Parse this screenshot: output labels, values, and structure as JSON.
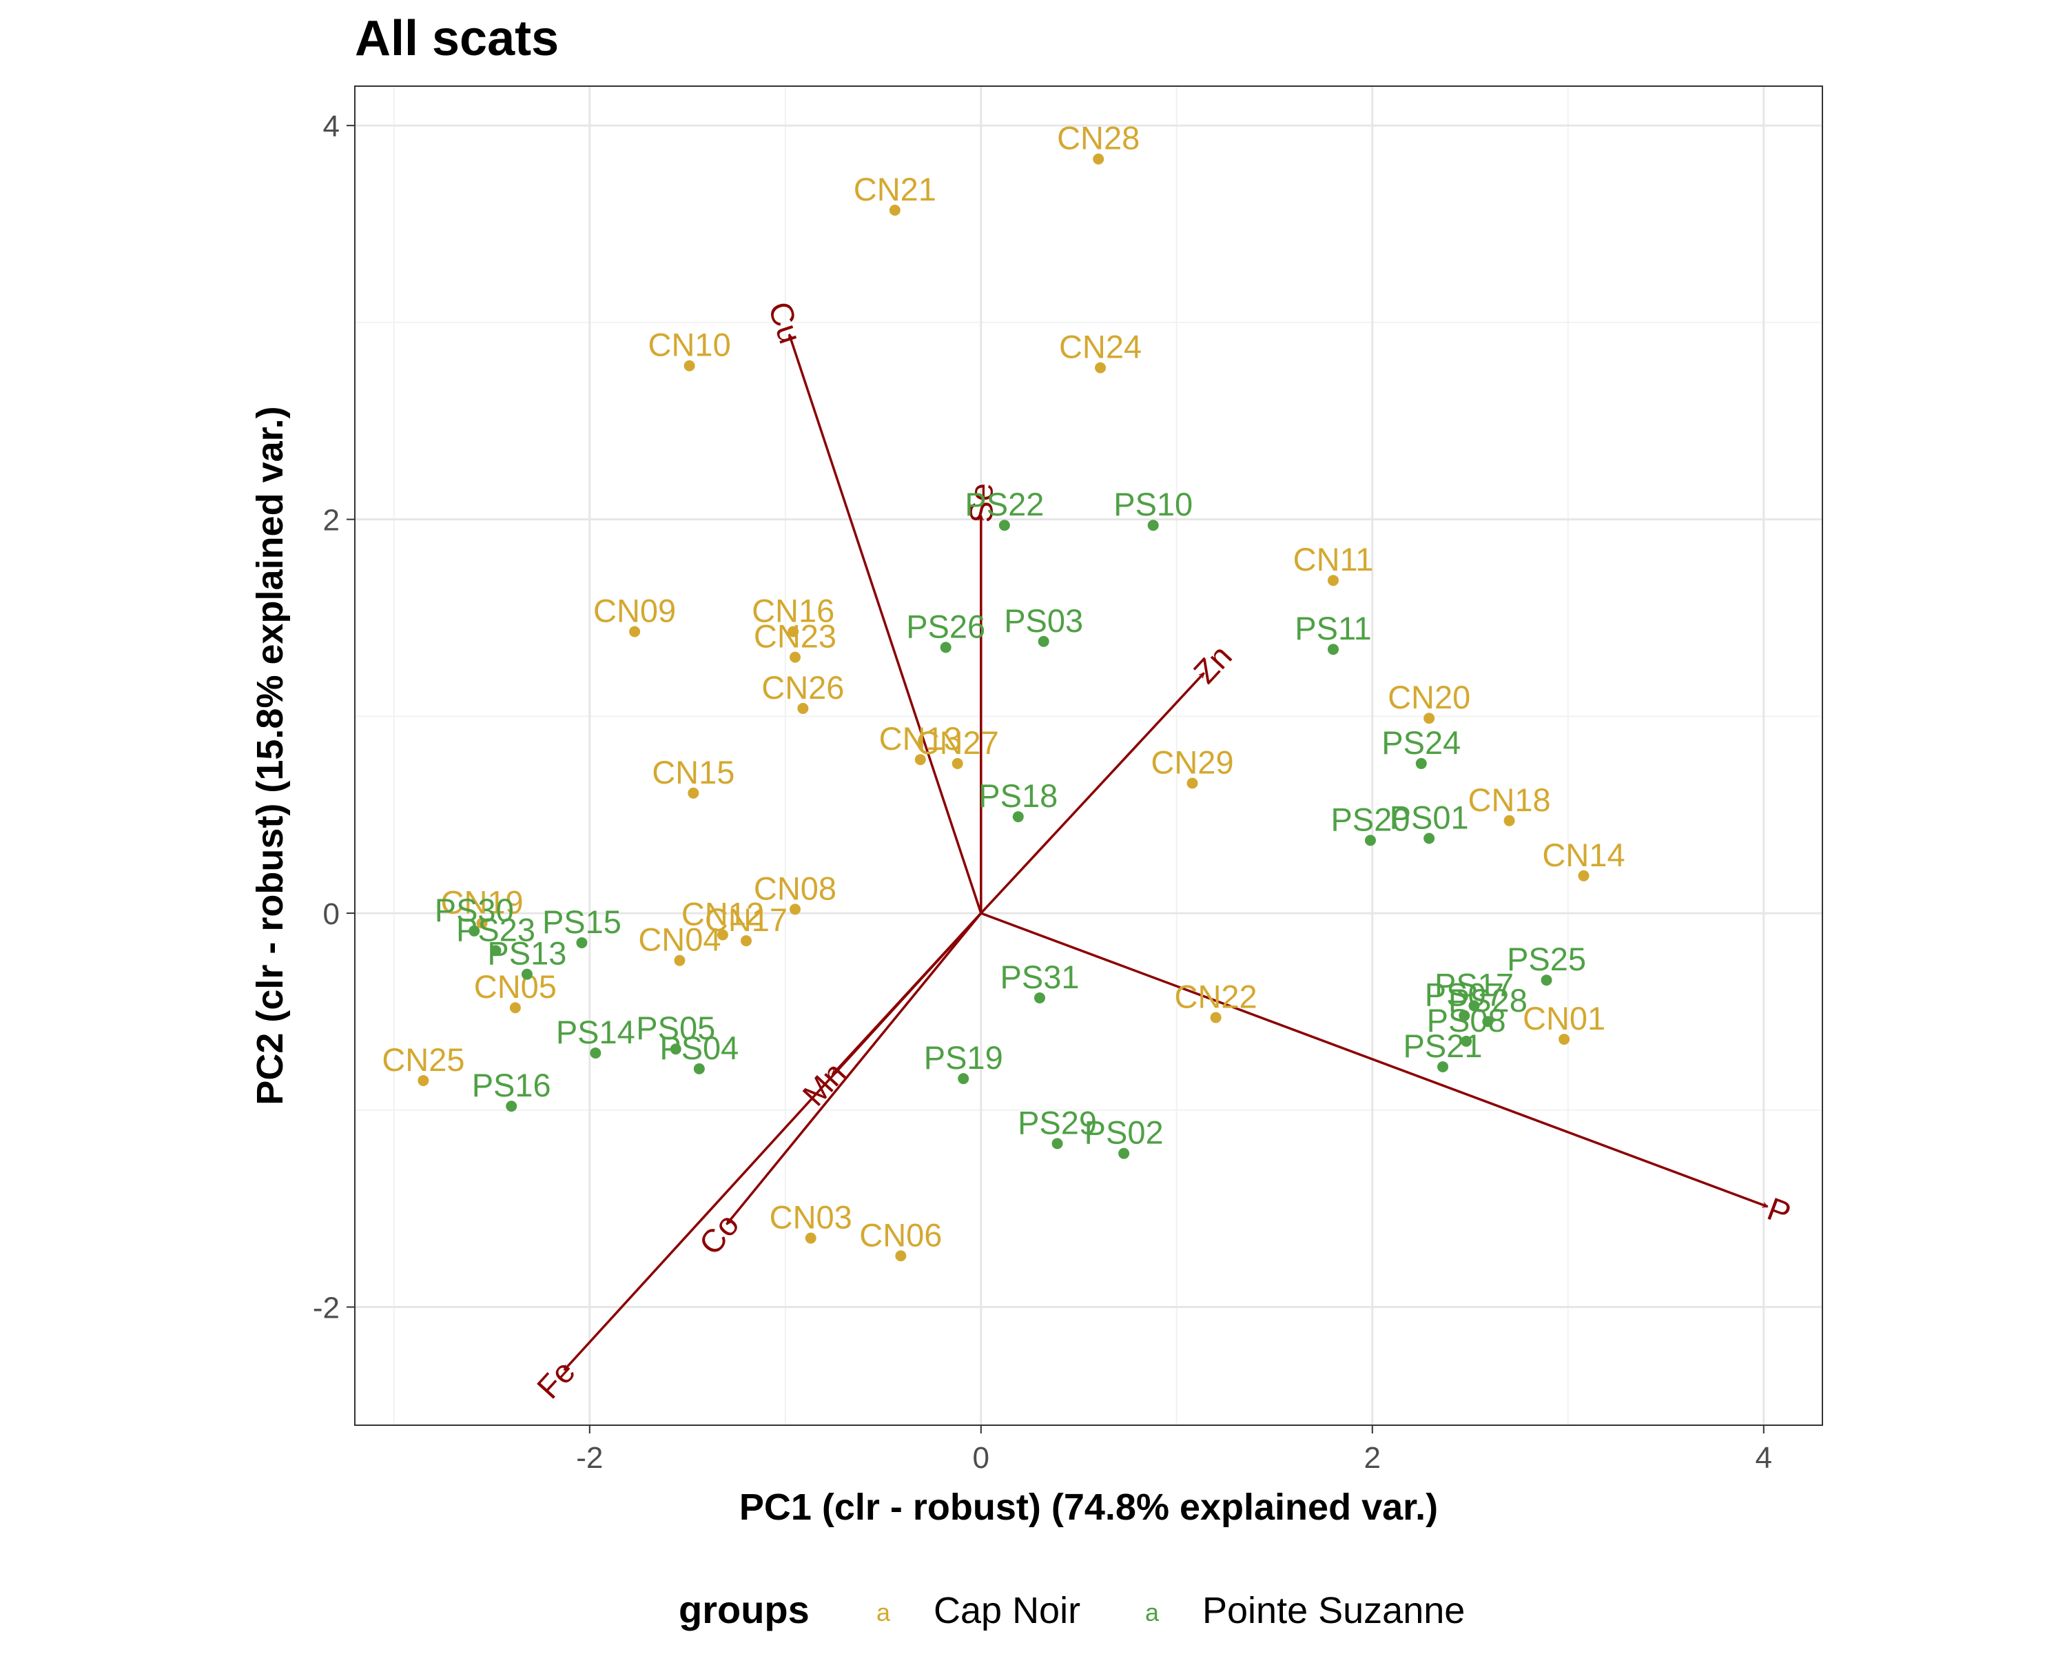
{
  "chart_data": {
    "type": "scatter",
    "title": "All scats",
    "xlabel": "PC1 (clr - robust) (74.8% explained var.)",
    "ylabel": "PC2 (clr - robust) (15.8% explained var.)",
    "xlim": [
      -3.2,
      4.3
    ],
    "ylim": [
      -2.6,
      4.2
    ],
    "xticks": [
      -2,
      0,
      2,
      4
    ],
    "yticks": [
      -2,
      0,
      2,
      4
    ],
    "grid": true,
    "legend": {
      "title": "groups",
      "position": "bottom",
      "key_glyph": "a"
    },
    "colors": {
      "Cap Noir": "#d4a830",
      "Pointe Suzanne": "#4fa045",
      "loadings": "#8b0000"
    },
    "series": [
      {
        "name": "Cap Noir",
        "color": "#d4a830",
        "points": [
          {
            "label": "CN28",
            "x": 0.6,
            "y": 3.83
          },
          {
            "label": "CN21",
            "x": -0.44,
            "y": 3.57
          },
          {
            "label": "CN10",
            "x": -1.49,
            "y": 2.78
          },
          {
            "label": "CN24",
            "x": 0.61,
            "y": 2.77
          },
          {
            "label": "CN11",
            "x": 1.8,
            "y": 1.69
          },
          {
            "label": "CN09",
            "x": -1.77,
            "y": 1.43
          },
          {
            "label": "CN16",
            "x": -0.96,
            "y": 1.43
          },
          {
            "label": "CN23",
            "x": -0.95,
            "y": 1.3
          },
          {
            "label": "CN26",
            "x": -0.91,
            "y": 1.04
          },
          {
            "label": "CN20",
            "x": 2.29,
            "y": 0.99
          },
          {
            "label": "CN13",
            "x": -0.31,
            "y": 0.78
          },
          {
            "label": "CN27",
            "x": -0.12,
            "y": 0.76
          },
          {
            "label": "CN29",
            "x": 1.08,
            "y": 0.66
          },
          {
            "label": "CN15",
            "x": -1.47,
            "y": 0.61
          },
          {
            "label": "CN18",
            "x": 2.7,
            "y": 0.47
          },
          {
            "label": "CN14",
            "x": 3.08,
            "y": 0.19
          },
          {
            "label": "CN08",
            "x": -0.95,
            "y": 0.02
          },
          {
            "label": "CN19",
            "x": -2.55,
            "y": -0.05
          },
          {
            "label": "CN12",
            "x": -1.32,
            "y": -0.11
          },
          {
            "label": "CN17",
            "x": -1.2,
            "y": -0.14
          },
          {
            "label": "CN04",
            "x": -1.54,
            "y": -0.24
          },
          {
            "label": "CN05",
            "x": -2.38,
            "y": -0.48
          },
          {
            "label": "CN22",
            "x": 1.2,
            "y": -0.53
          },
          {
            "label": "CN01",
            "x": 2.98,
            "y": -0.64
          },
          {
            "label": "CN25",
            "x": -2.85,
            "y": -0.85
          },
          {
            "label": "CN03",
            "x": -0.87,
            "y": -1.65
          },
          {
            "label": "CN06",
            "x": -0.41,
            "y": -1.74
          }
        ]
      },
      {
        "name": "Pointe Suzanne",
        "color": "#4fa045",
        "points": [
          {
            "label": "PS22",
            "x": 0.12,
            "y": 1.97
          },
          {
            "label": "PS10",
            "x": 0.88,
            "y": 1.97
          },
          {
            "label": "PS26",
            "x": -0.18,
            "y": 1.35
          },
          {
            "label": "PS03",
            "x": 0.32,
            "y": 1.38
          },
          {
            "label": "PS11",
            "x": 1.8,
            "y": 1.34
          },
          {
            "label": "PS24",
            "x": 2.25,
            "y": 0.76
          },
          {
            "label": "PS18",
            "x": 0.19,
            "y": 0.49
          },
          {
            "label": "PS20",
            "x": 1.99,
            "y": 0.37
          },
          {
            "label": "PS01",
            "x": 2.29,
            "y": 0.38
          },
          {
            "label": "PS30",
            "x": -2.59,
            "y": -0.09
          },
          {
            "label": "PS15",
            "x": -2.04,
            "y": -0.15
          },
          {
            "label": "PS23",
            "x": -2.48,
            "y": -0.19
          },
          {
            "label": "PS13",
            "x": -2.32,
            "y": -0.31
          },
          {
            "label": "PS25",
            "x": 2.89,
            "y": -0.34
          },
          {
            "label": "PS31",
            "x": 0.3,
            "y": -0.43
          },
          {
            "label": "PS17",
            "x": 2.52,
            "y": -0.47
          },
          {
            "label": "PS07",
            "x": 2.47,
            "y": -0.52
          },
          {
            "label": "PS28",
            "x": 2.59,
            "y": -0.55
          },
          {
            "label": "PS08",
            "x": 2.48,
            "y": -0.65
          },
          {
            "label": "PS21",
            "x": 2.36,
            "y": -0.78
          },
          {
            "label": "PS14",
            "x": -1.97,
            "y": -0.71
          },
          {
            "label": "PS05",
            "x": -1.56,
            "y": -0.69
          },
          {
            "label": "PS04",
            "x": -1.44,
            "y": -0.79
          },
          {
            "label": "PS19",
            "x": -0.09,
            "y": -0.84
          },
          {
            "label": "PS16",
            "x": -2.4,
            "y": -0.98
          },
          {
            "label": "PS29",
            "x": 0.39,
            "y": -1.17
          },
          {
            "label": "PS02",
            "x": 0.73,
            "y": -1.22
          }
        ]
      }
    ],
    "loadings": [
      {
        "label": "Cu",
        "x": -0.98,
        "y": 2.94
      },
      {
        "label": "Se",
        "x": 0.0,
        "y": 2.02
      },
      {
        "label": "Zn",
        "x": 1.14,
        "y": 1.22
      },
      {
        "label": "P",
        "x": 4.02,
        "y": -1.49
      },
      {
        "label": "Mn",
        "x": -0.76,
        "y": -0.82
      },
      {
        "label": "Co",
        "x": -1.3,
        "y": -1.58
      },
      {
        "label": "Fe",
        "x": -2.13,
        "y": -2.32
      }
    ]
  }
}
